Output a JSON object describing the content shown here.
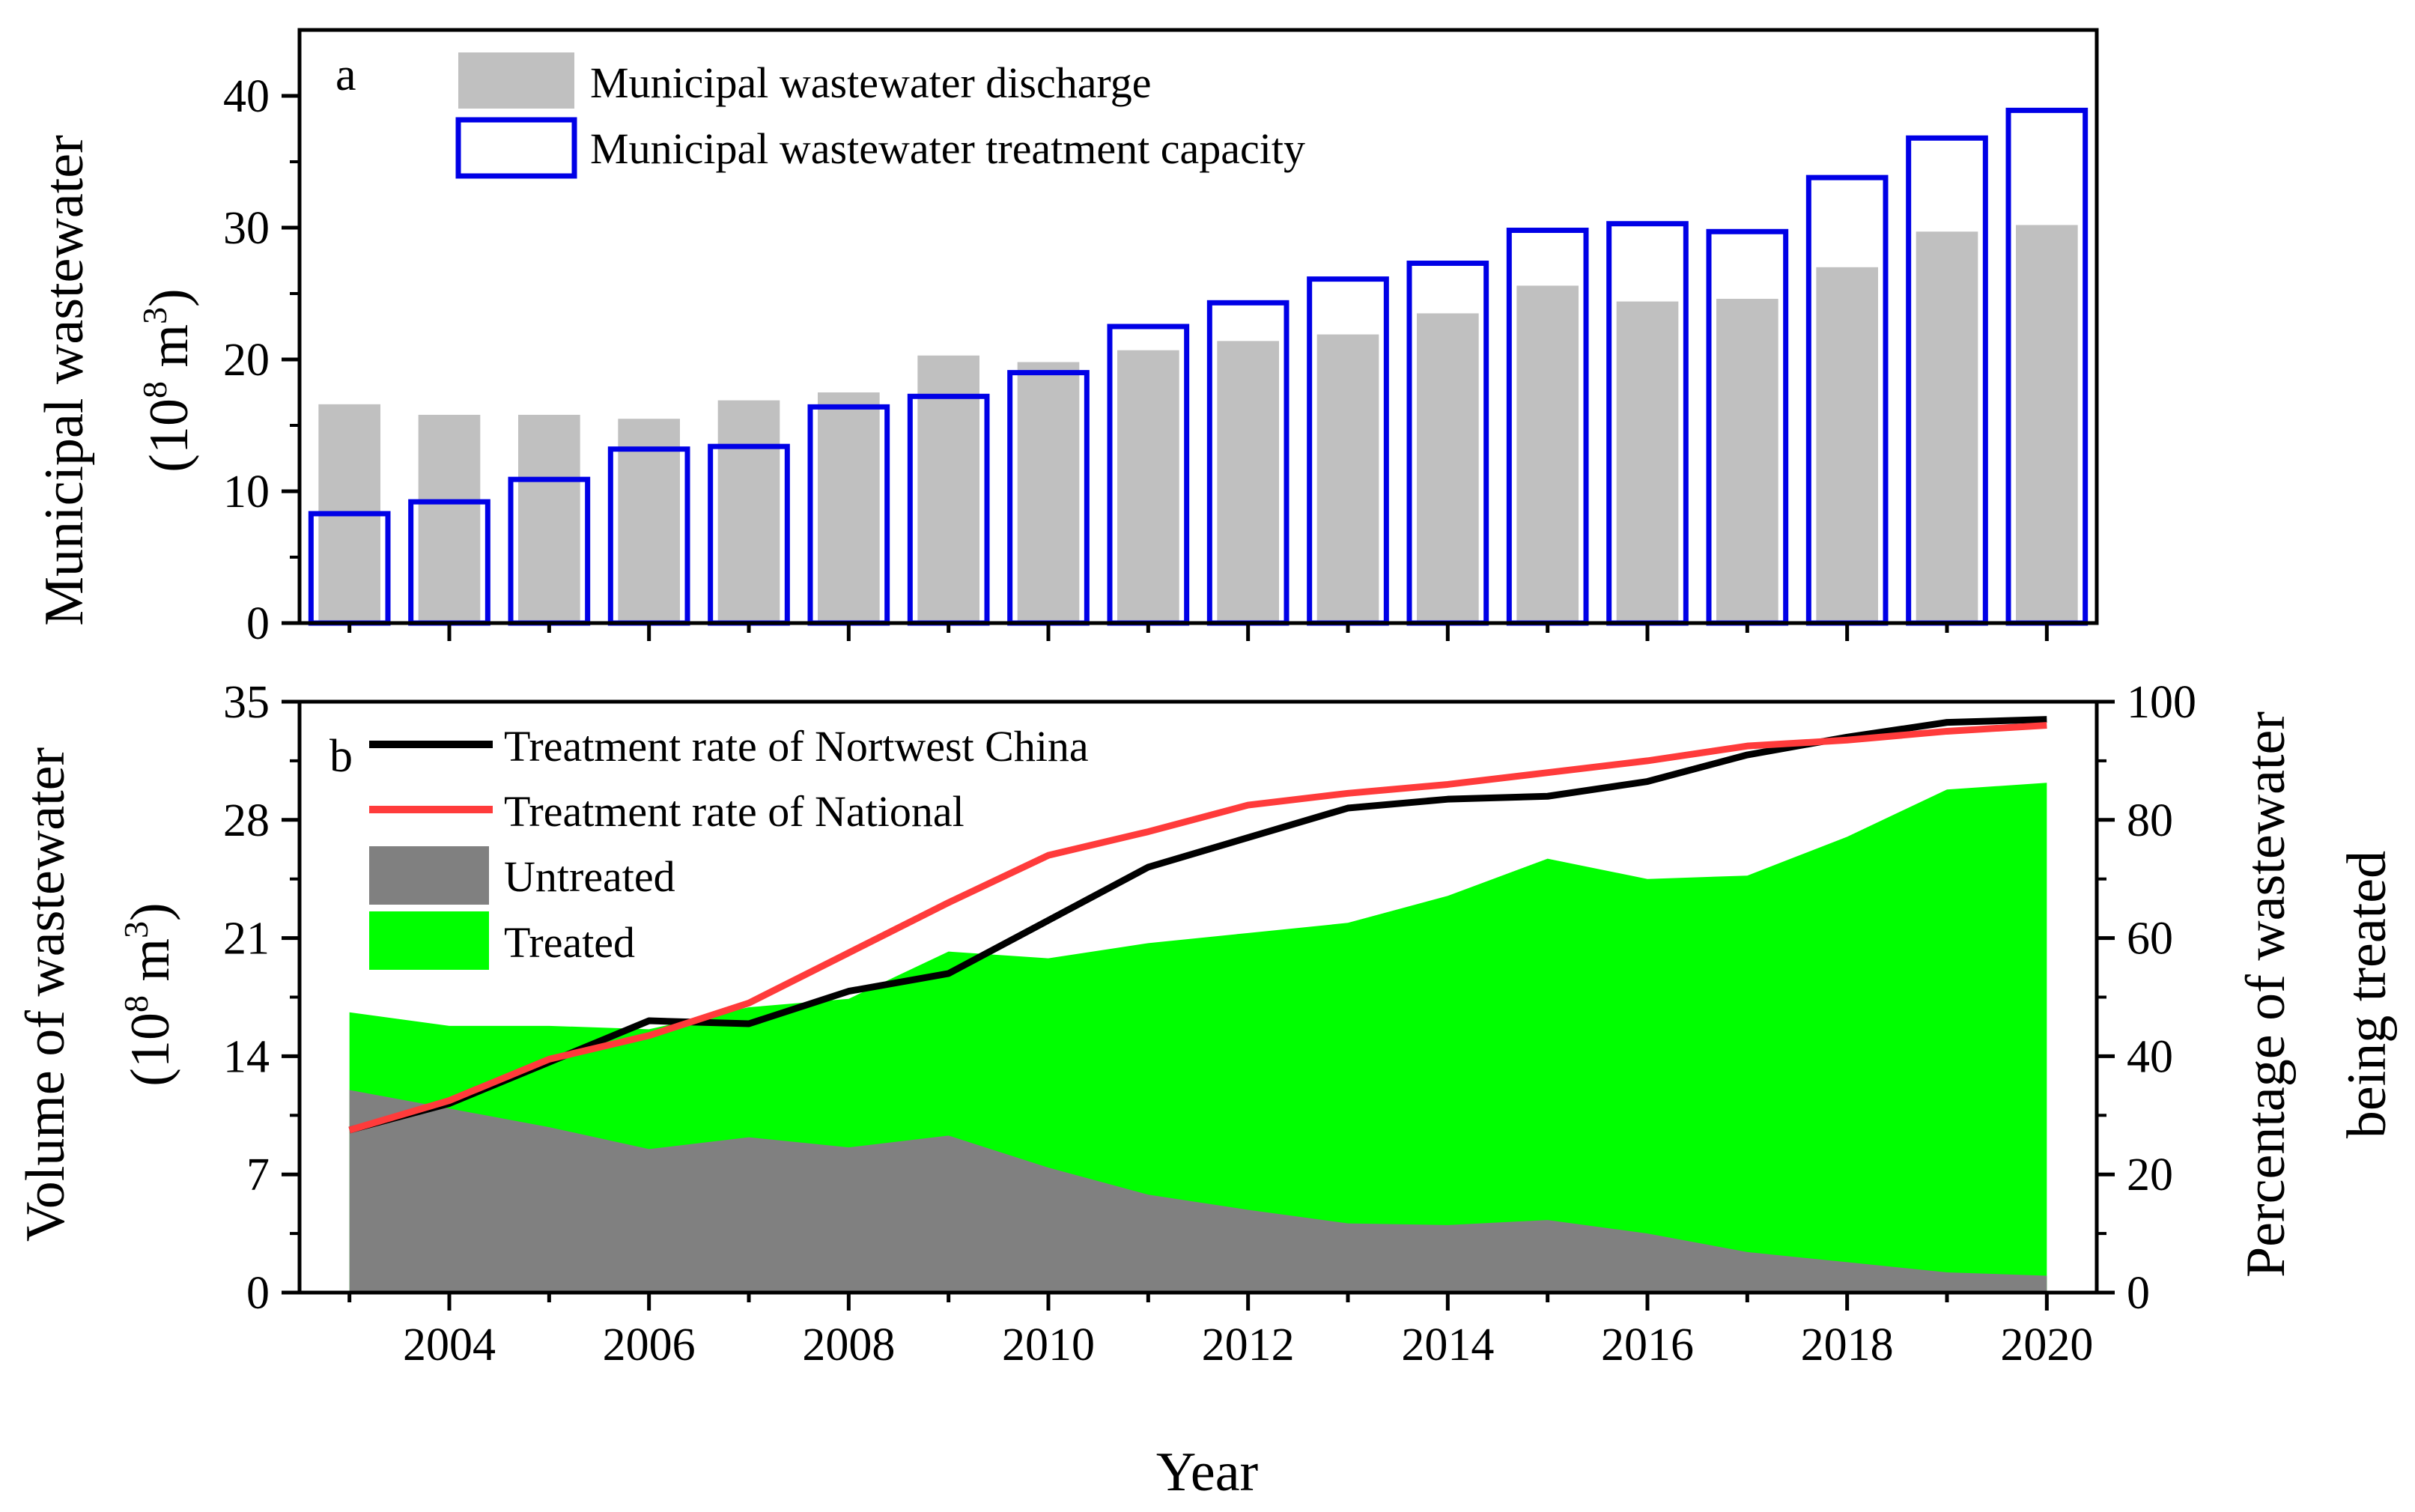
{
  "chart_data": [
    {
      "type": "bar",
      "panel": "a",
      "panel_label": "a",
      "categories": [
        "2003",
        "2004",
        "2005",
        "2006",
        "2007",
        "2008",
        "2009",
        "2010",
        "2011",
        "2012",
        "2013",
        "2014",
        "2015",
        "2016",
        "2017",
        "2018",
        "2019",
        "2020"
      ],
      "series": [
        {
          "name": "Municipal wastewater discharge",
          "style": "filled",
          "color": "#c0c0c0",
          "values": [
            16.6,
            15.8,
            15.8,
            15.5,
            16.9,
            17.5,
            20.3,
            19.8,
            20.7,
            21.4,
            21.9,
            23.5,
            25.6,
            24.4,
            24.6,
            27.0,
            29.7,
            30.2
          ]
        },
        {
          "name": "Municipal wastewater treatment capacity",
          "style": "outline",
          "color": "#0000e6",
          "values": [
            8.3,
            9.2,
            10.9,
            13.2,
            13.4,
            16.4,
            17.2,
            19.0,
            22.5,
            24.3,
            26.1,
            27.3,
            29.8,
            30.3,
            29.7,
            33.8,
            36.8,
            38.9
          ]
        }
      ],
      "ylabel_line1": "Municipal wastewater",
      "ylabel_line2_prefix": "(10",
      "ylabel_line2_sup": "8",
      "ylabel_line2_unit": " m",
      "ylabel_line2_unit_sup": "3",
      "ylabel_line2_suffix": ")",
      "ylim": [
        0,
        45
      ],
      "yticks": [
        0,
        10,
        20,
        30,
        40
      ],
      "ytick_labels": [
        "0",
        "10",
        "20",
        "30",
        "40"
      ]
    },
    {
      "type": "area",
      "panel": "b",
      "panel_label": "b",
      "x": [
        2003,
        2004,
        2005,
        2006,
        2007,
        2008,
        2009,
        2010,
        2011,
        2012,
        2013,
        2014,
        2015,
        2016,
        2017,
        2018,
        2019,
        2020
      ],
      "areas": [
        {
          "name": "Untreated",
          "color": "#808080",
          "values": [
            12.0,
            10.9,
            9.8,
            8.5,
            9.2,
            8.6,
            9.3,
            7.4,
            5.8,
            4.9,
            4.1,
            4.0,
            4.3,
            3.5,
            2.4,
            1.8,
            1.2,
            1.0
          ]
        },
        {
          "name": "Treated",
          "color": "#00ff00",
          "values": [
            16.6,
            15.8,
            15.8,
            15.6,
            16.9,
            17.4,
            20.2,
            19.8,
            20.7,
            21.3,
            21.9,
            23.5,
            25.7,
            24.5,
            24.7,
            27.0,
            29.8,
            30.2
          ]
        }
      ],
      "lines": [
        {
          "name": "Treatment rate of Nortwest China",
          "color": "#000000",
          "values": [
            27.5,
            32,
            39,
            46,
            45.5,
            51,
            54,
            63,
            72,
            77,
            82,
            83.5,
            84,
            86.5,
            91,
            94,
            96.5,
            97
          ]
        },
        {
          "name": "Treatment rate of National",
          "color": "#ff3b3b",
          "values": [
            27.5,
            32.5,
            39.5,
            43.5,
            49,
            57.5,
            66,
            74,
            78,
            82.5,
            84.5,
            86,
            88,
            90,
            92.5,
            93.5,
            95,
            96
          ]
        }
      ],
      "legend_order": [
        "Treatment rate of Nortwest China",
        "Treatment rate of National",
        "Untreated",
        "Treated"
      ],
      "ylabel_left_line1": "Volume of wastewater",
      "ylabel_left_line2_prefix": "(10",
      "ylabel_left_line2_sup": "8",
      "ylabel_left_line2_unit": " m",
      "ylabel_left_line2_unit_sup": "3",
      "ylabel_left_line2_suffix": ")",
      "ylabel_right_line1": "Percentage of wastewater",
      "ylabel_right_line2": "being treated",
      "ylim_left": [
        0,
        35
      ],
      "yticks_left": [
        0,
        7,
        14,
        21,
        28,
        35
      ],
      "ytick_labels_left": [
        "0",
        "7",
        "14",
        "21",
        "28",
        "35"
      ],
      "ylim_right": [
        0,
        100
      ],
      "yticks_right": [
        0,
        20,
        40,
        60,
        80,
        100
      ],
      "ytick_labels_right": [
        "0",
        "20",
        "40",
        "60",
        "80",
        "100"
      ],
      "xlabel": "Year",
      "xlim": [
        2002.5,
        2020.5
      ],
      "xticks": [
        2004,
        2006,
        2008,
        2010,
        2012,
        2014,
        2016,
        2018,
        2020
      ],
      "xtick_labels": [
        "2004",
        "2006",
        "2008",
        "2010",
        "2012",
        "2014",
        "2016",
        "2018",
        "2020"
      ]
    }
  ]
}
